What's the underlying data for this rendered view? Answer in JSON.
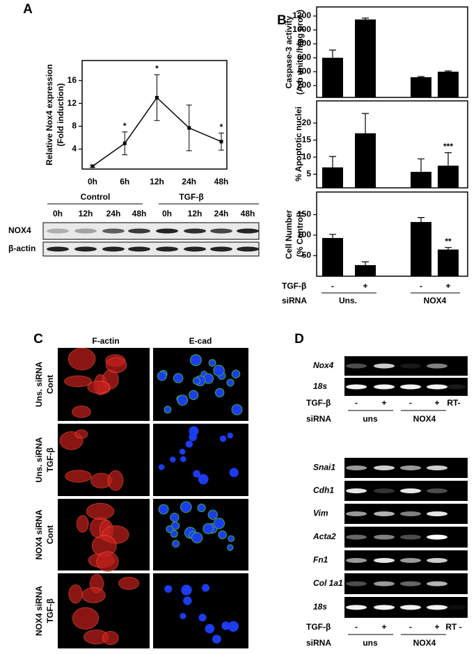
{
  "panel_labels": [
    "A",
    "B",
    "C",
    "D"
  ],
  "chart_data": [
    {
      "type": "line",
      "ylabel": [
        "Relative Nox4 expression",
        "(Fold induction)"
      ],
      "categories": [
        "0h",
        "6h",
        "12h",
        "24h",
        "48h"
      ],
      "values": [
        1,
        5,
        13,
        7.7,
        5.3
      ],
      "errors": [
        0.2,
        2,
        4,
        4,
        1.5
      ],
      "annotations": [
        null,
        "*",
        "*",
        null,
        "*"
      ],
      "ylim": [
        0.5,
        19.5
      ],
      "yticks": [
        4,
        8,
        12,
        16
      ],
      "color": "#000000"
    },
    {
      "type": "bar",
      "ylabel": [
        "Caspase-3 activity",
        "(Arb units /h/µg prot )"
      ],
      "values": [
        600,
        1150,
        320,
        400
      ],
      "errors": [
        110,
        20,
        10,
        10
      ],
      "ylim": [
        30,
        1330
      ],
      "yticks": [
        200,
        400,
        600,
        800,
        1000,
        1200
      ],
      "color": "#000000"
    },
    {
      "type": "bar",
      "ylabel": [
        "% Apoptotic nuclei"
      ],
      "values": [
        7,
        17,
        5.7,
        7.5
      ],
      "errors": [
        3.2,
        5.8,
        3.8,
        3.8
      ],
      "annotations": [
        null,
        null,
        null,
        "***"
      ],
      "ylim": [
        1,
        26.5
      ],
      "yticks": [
        5,
        10,
        15,
        20
      ],
      "color": "#000000"
    },
    {
      "type": "bar",
      "ylabel": [
        "Cell Number",
        "(% Control)"
      ],
      "values": [
        93,
        27,
        132,
        65
      ],
      "errors": [
        9,
        8,
        11,
        5
      ],
      "annotations": [
        null,
        null,
        null,
        "**"
      ],
      "ylim": [
        0,
        205
      ],
      "yticks": [
        50,
        100,
        150
      ],
      "color": "#000000"
    }
  ],
  "panel_b_x": {
    "tgf_label": "TGF-β",
    "tgf": [
      "-",
      "+",
      "-",
      "+"
    ],
    "sirna_label": "siRNA",
    "groups": [
      "Uns.",
      "NOX4"
    ]
  },
  "blot_a": {
    "groups": [
      "Control",
      "TGF-β"
    ],
    "times": [
      "0h",
      "12h",
      "24h",
      "48h",
      "0h",
      "12h",
      "24h",
      "48h"
    ],
    "rows": [
      "NOX4",
      "β-actin"
    ]
  },
  "panel_c": {
    "columns": [
      "F-actin",
      "E-cad"
    ],
    "rows": [
      [
        "Uns. siRNA",
        "Cont"
      ],
      [
        "Uns. siRNA",
        "TGF-β"
      ],
      [
        "NOX4 siRNA",
        "Cont"
      ],
      [
        "NOX4 siRNA",
        "TGF-β"
      ]
    ]
  },
  "gel_top": {
    "genes": [
      "Nox4",
      "18s"
    ],
    "tgf_label": "TGF-β",
    "tgf": [
      "-",
      "+",
      "-",
      "+"
    ],
    "rt": "RT-",
    "sirna_label": "siRNA",
    "groups": [
      "uns",
      "NOX4"
    ]
  },
  "gel_bottom": {
    "genes": [
      "Snai1",
      "Cdh1",
      "Vim",
      "Acta2",
      "Fn1",
      "Col 1a1",
      "18s"
    ],
    "tgf_label": "TGF-β",
    "tgf": [
      "-",
      "+",
      "-",
      "+"
    ],
    "rt": "RT -",
    "sirna_label": "siRNA",
    "groups": [
      "uns",
      "NOX4"
    ]
  }
}
